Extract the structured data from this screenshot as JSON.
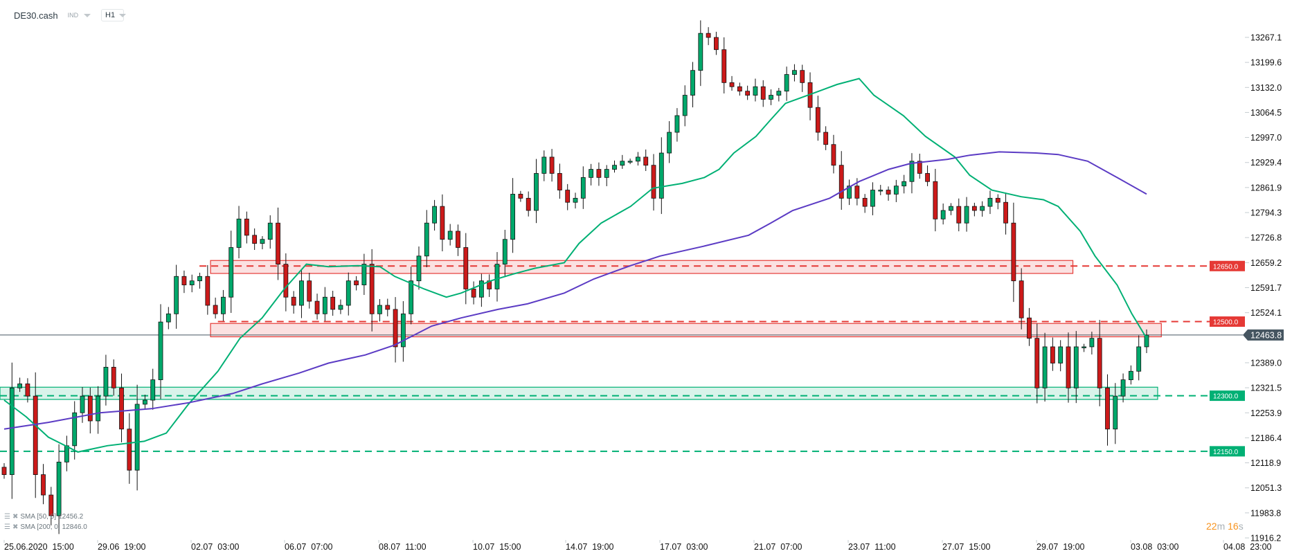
{
  "header": {
    "symbol": "DE30.cash",
    "class_label": "IND",
    "timeframe": "H1"
  },
  "legend": [
    {
      "label": "SMA [50, 0]",
      "value": "12456.2",
      "color": "#00b074"
    },
    {
      "label": "SMA [200, 0]",
      "value": "12846.0",
      "color": "#5b3bc4"
    }
  ],
  "timer": {
    "minutes": "22",
    "m": "m",
    "seconds": "16",
    "s": "s"
  },
  "chart_data": {
    "type": "candlestick",
    "ylim": [
      11916.2,
      13267.1
    ],
    "y_ticks": [
      "13267.1",
      "13199.6",
      "13132.0",
      "13064.5",
      "12997.0",
      "12929.4",
      "12861.9",
      "12794.3",
      "12726.8",
      "12659.2",
      "12591.7",
      "12524.1",
      "12389.0",
      "12321.5",
      "12253.9",
      "12186.4",
      "12118.9",
      "12051.3",
      "11983.8",
      "11916.2"
    ],
    "x_ticks": [
      "25.06.2020  15:00",
      "29.06  19:00",
      "02.07  03:00",
      "06.07  07:00",
      "08.07  11:00",
      "10.07  15:00",
      "14.07  19:00",
      "17.07  03:00",
      "21.07  07:00",
      "23.07  11:00",
      "27.07  15:00",
      "29.07  19:00",
      "03.08  03:00",
      "04.08  23:00"
    ],
    "closes": [
      12087,
      12321,
      12332,
      12299,
      12087,
      12032,
      11976,
      12121,
      12165,
      12254,
      12299,
      12232,
      12299,
      12377,
      12321,
      12210,
      12099,
      12277,
      12288,
      12343,
      12499,
      12521,
      12622,
      12599,
      12610,
      12622,
      12544,
      12521,
      12566,
      12700,
      12777,
      12733,
      12711,
      12722,
      12766,
      12655,
      12566,
      12544,
      12610,
      12555,
      12521,
      12566,
      12533,
      12544,
      12610,
      12599,
      12655,
      12521,
      12544,
      12533,
      12432,
      12521,
      12610,
      12677,
      12766,
      12811,
      12722,
      12744,
      12700,
      12588,
      12566,
      12610,
      12588,
      12655,
      12722,
      12844,
      12833,
      12800,
      12900,
      12944,
      12900,
      12855,
      12822,
      12833,
      12889,
      12911,
      12889,
      12911,
      12922,
      12933,
      12933,
      12944,
      12922,
      12833,
      12955,
      13011,
      13056,
      13111,
      13178,
      13278,
      13267,
      13234,
      13145,
      13134,
      13122,
      13111,
      13134,
      13100,
      13111,
      13122,
      13167,
      13178,
      13145,
      13078,
      13011,
      12978,
      12922,
      12833,
      12866,
      12833,
      12811,
      12855,
      12855,
      12844,
      12866,
      12878,
      12933,
      12900,
      12878,
      12777,
      12800,
      12811,
      12766,
      12811,
      12800,
      12811,
      12833,
      12822,
      12766,
      12610,
      12510,
      12455,
      12321,
      12432,
      12388,
      12432,
      12321,
      12432,
      12432,
      12455,
      12321,
      12210,
      12299,
      12343,
      12366,
      12432,
      12463.8
    ],
    "series": [
      {
        "name": "SMA [50, 0]",
        "color": "#00b074",
        "points": [
          [
            0,
            12288
          ],
          [
            3,
            12243
          ],
          [
            6,
            12188
          ],
          [
            10,
            12148
          ],
          [
            14,
            12165
          ],
          [
            19,
            12177
          ],
          [
            22,
            12199
          ],
          [
            25,
            12277
          ],
          [
            29,
            12366
          ],
          [
            32,
            12455
          ],
          [
            35,
            12510
          ],
          [
            38,
            12588
          ],
          [
            41,
            12655
          ],
          [
            44,
            12648
          ],
          [
            48,
            12651
          ],
          [
            51,
            12648
          ],
          [
            53,
            12622
          ],
          [
            57,
            12588
          ],
          [
            60,
            12566
          ],
          [
            62,
            12577
          ],
          [
            66,
            12610
          ],
          [
            69,
            12628
          ],
          [
            72,
            12644
          ],
          [
            76,
            12659
          ],
          [
            78,
            12711
          ],
          [
            81,
            12766
          ],
          [
            85,
            12811
          ],
          [
            88,
            12860
          ],
          [
            92,
            12873
          ],
          [
            95,
            12889
          ],
          [
            97,
            12911
          ],
          [
            99,
            12955
          ],
          [
            102,
            13000
          ],
          [
            104,
            13045
          ],
          [
            106,
            13089
          ],
          [
            110,
            13118
          ],
          [
            113,
            13140
          ],
          [
            116,
            13156
          ],
          [
            118,
            13111
          ],
          [
            122,
            13056
          ],
          [
            125,
            13000
          ],
          [
            129,
            12944
          ],
          [
            131,
            12895
          ],
          [
            134,
            12855
          ],
          [
            138,
            12837
          ],
          [
            141,
            12829
          ],
          [
            143,
            12811
          ],
          [
            146,
            12744
          ],
          [
            148,
            12677
          ],
          [
            151,
            12599
          ],
          [
            153,
            12521
          ],
          [
            155,
            12455
          ]
        ]
      },
      {
        "name": "SMA [200, 0]",
        "color": "#5b3bc4",
        "points": [
          [
            0,
            12210
          ],
          [
            6,
            12228
          ],
          [
            13,
            12254
          ],
          [
            20,
            12265
          ],
          [
            25,
            12281
          ],
          [
            31,
            12306
          ],
          [
            35,
            12332
          ],
          [
            40,
            12361
          ],
          [
            44,
            12388
          ],
          [
            49,
            12410
          ],
          [
            53,
            12437
          ],
          [
            58,
            12488
          ],
          [
            62,
            12510
          ],
          [
            67,
            12533
          ],
          [
            71,
            12548
          ],
          [
            76,
            12577
          ],
          [
            80,
            12615
          ],
          [
            85,
            12651
          ],
          [
            89,
            12677
          ],
          [
            95,
            12704
          ],
          [
            101,
            12733
          ],
          [
            104,
            12766
          ],
          [
            107,
            12800
          ],
          [
            112,
            12833
          ],
          [
            116,
            12878
          ],
          [
            120,
            12911
          ],
          [
            123,
            12927
          ],
          [
            128,
            12938
          ],
          [
            131,
            12949
          ],
          [
            135,
            12958
          ],
          [
            140,
            12955
          ],
          [
            143,
            12951
          ],
          [
            147,
            12933
          ],
          [
            151,
            12889
          ],
          [
            155,
            12844
          ]
        ]
      }
    ],
    "zones": [
      {
        "type": "resistance",
        "from": 12630,
        "to": 12665,
        "from_bar": 28,
        "to_bar": 145,
        "color": "#e53935"
      },
      {
        "type": "resistance",
        "from": 12459,
        "to": 12495,
        "from_bar": 28,
        "to_bar": 157,
        "color": "#e53935"
      },
      {
        "type": "support",
        "from": 12290,
        "to": 12323,
        "from_bar": -1,
        "to_bar": 156.5,
        "color": "#00b074"
      }
    ],
    "levels": [
      {
        "price": 12650,
        "label": "12650.0",
        "color": "#e53935",
        "from_bar": 26.5
      },
      {
        "price": 12500,
        "label": "12500.0",
        "color": "#e53935",
        "from_bar": 29
      },
      {
        "price": 12300,
        "label": "12300.0",
        "color": "#00b074",
        "from_bar": -1
      },
      {
        "price": 12150,
        "label": "12150.0",
        "color": "#00b074",
        "from_bar": -1
      }
    ],
    "current_price": {
      "value": 12463.8,
      "label": "12463.8",
      "color": "#455560"
    },
    "candle_colors": {
      "up": "#00a86b",
      "down": "#cc1a1a",
      "outline": "#111111"
    },
    "grid": false
  }
}
